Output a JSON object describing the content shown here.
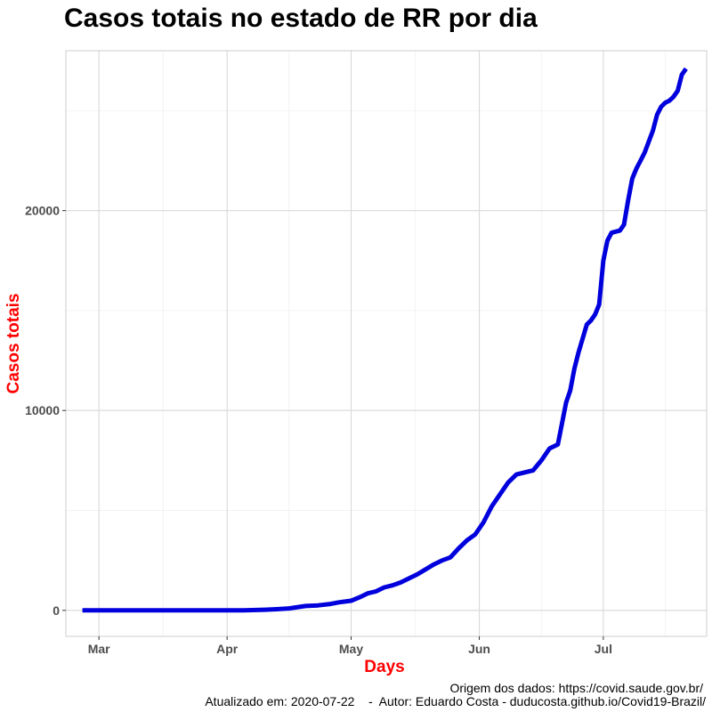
{
  "chart_data": {
    "type": "line",
    "title": "Casos totais no estado de RR por dia",
    "xlabel": "Days",
    "ylabel": "Casos totais",
    "x_ticks": [
      {
        "label": "Mar",
        "date": "2020-03-01"
      },
      {
        "label": "Apr",
        "date": "2020-04-01"
      },
      {
        "label": "May",
        "date": "2020-05-01"
      },
      {
        "label": "Jun",
        "date": "2020-06-01"
      },
      {
        "label": "Jul",
        "date": "2020-07-01"
      }
    ],
    "y_ticks": [
      0,
      10000,
      20000
    ],
    "xlim": [
      "2020-02-22",
      "2020-07-26"
    ],
    "ylim": [
      -1300,
      28000
    ],
    "grid": true,
    "line_color": "#0000dd",
    "series": [
      {
        "x": [
          "2020-02-26",
          "2020-03-01",
          "2020-03-10",
          "2020-03-20",
          "2020-03-25",
          "2020-04-01",
          "2020-04-05",
          "2020-04-10",
          "2020-04-13",
          "2020-04-16",
          "2020-04-20",
          "2020-04-23",
          "2020-04-26",
          "2020-04-28",
          "2020-05-01",
          "2020-05-03",
          "2020-05-05",
          "2020-05-07",
          "2020-05-09",
          "2020-05-11",
          "2020-05-13",
          "2020-05-15",
          "2020-05-17",
          "2020-05-19",
          "2020-05-21",
          "2020-05-23",
          "2020-05-25",
          "2020-05-27",
          "2020-05-29",
          "2020-05-31",
          "2020-06-02",
          "2020-06-04",
          "2020-06-06",
          "2020-06-08",
          "2020-06-10",
          "2020-06-12",
          "2020-06-14",
          "2020-06-16",
          "2020-06-18",
          "2020-06-20",
          "2020-06-22",
          "2020-06-23",
          "2020-06-24",
          "2020-06-25",
          "2020-06-27",
          "2020-06-28",
          "2020-06-29",
          "2020-06-30",
          "2020-07-01",
          "2020-07-02",
          "2020-07-03",
          "2020-07-05",
          "2020-07-06",
          "2020-07-07",
          "2020-07-08",
          "2020-07-09",
          "2020-07-10",
          "2020-07-11",
          "2020-07-13",
          "2020-07-14",
          "2020-07-15",
          "2020-07-16",
          "2020-07-17",
          "2020-07-18",
          "2020-07-19",
          "2020-07-20",
          "2020-07-21"
        ],
        "values": [
          0,
          0,
          0,
          0,
          0,
          0,
          5,
          30,
          60,
          100,
          220,
          250,
          320,
          400,
          480,
          650,
          850,
          950,
          1150,
          1250,
          1400,
          1600,
          1800,
          2050,
          2300,
          2500,
          2650,
          3100,
          3500,
          3800,
          4400,
          5200,
          5800,
          6400,
          6800,
          6900,
          7000,
          7500,
          8100,
          8300,
          10400,
          11000,
          12100,
          12900,
          14300,
          14500,
          14800,
          15300,
          17500,
          18500,
          18900,
          19000,
          19300,
          20500,
          21600,
          22100,
          22500,
          22900,
          24000,
          24800,
          25200,
          25400,
          25500,
          25700,
          26000,
          26800,
          27100
        ]
      }
    ]
  },
  "captions": {
    "source": "Origem dos dados: https://covid.saude.gov.br/",
    "updated": "Atualizado em: 2020-07-22    -  Autor: Eduardo Costa - duducosta.github.io/Covid19-Brazil/"
  }
}
